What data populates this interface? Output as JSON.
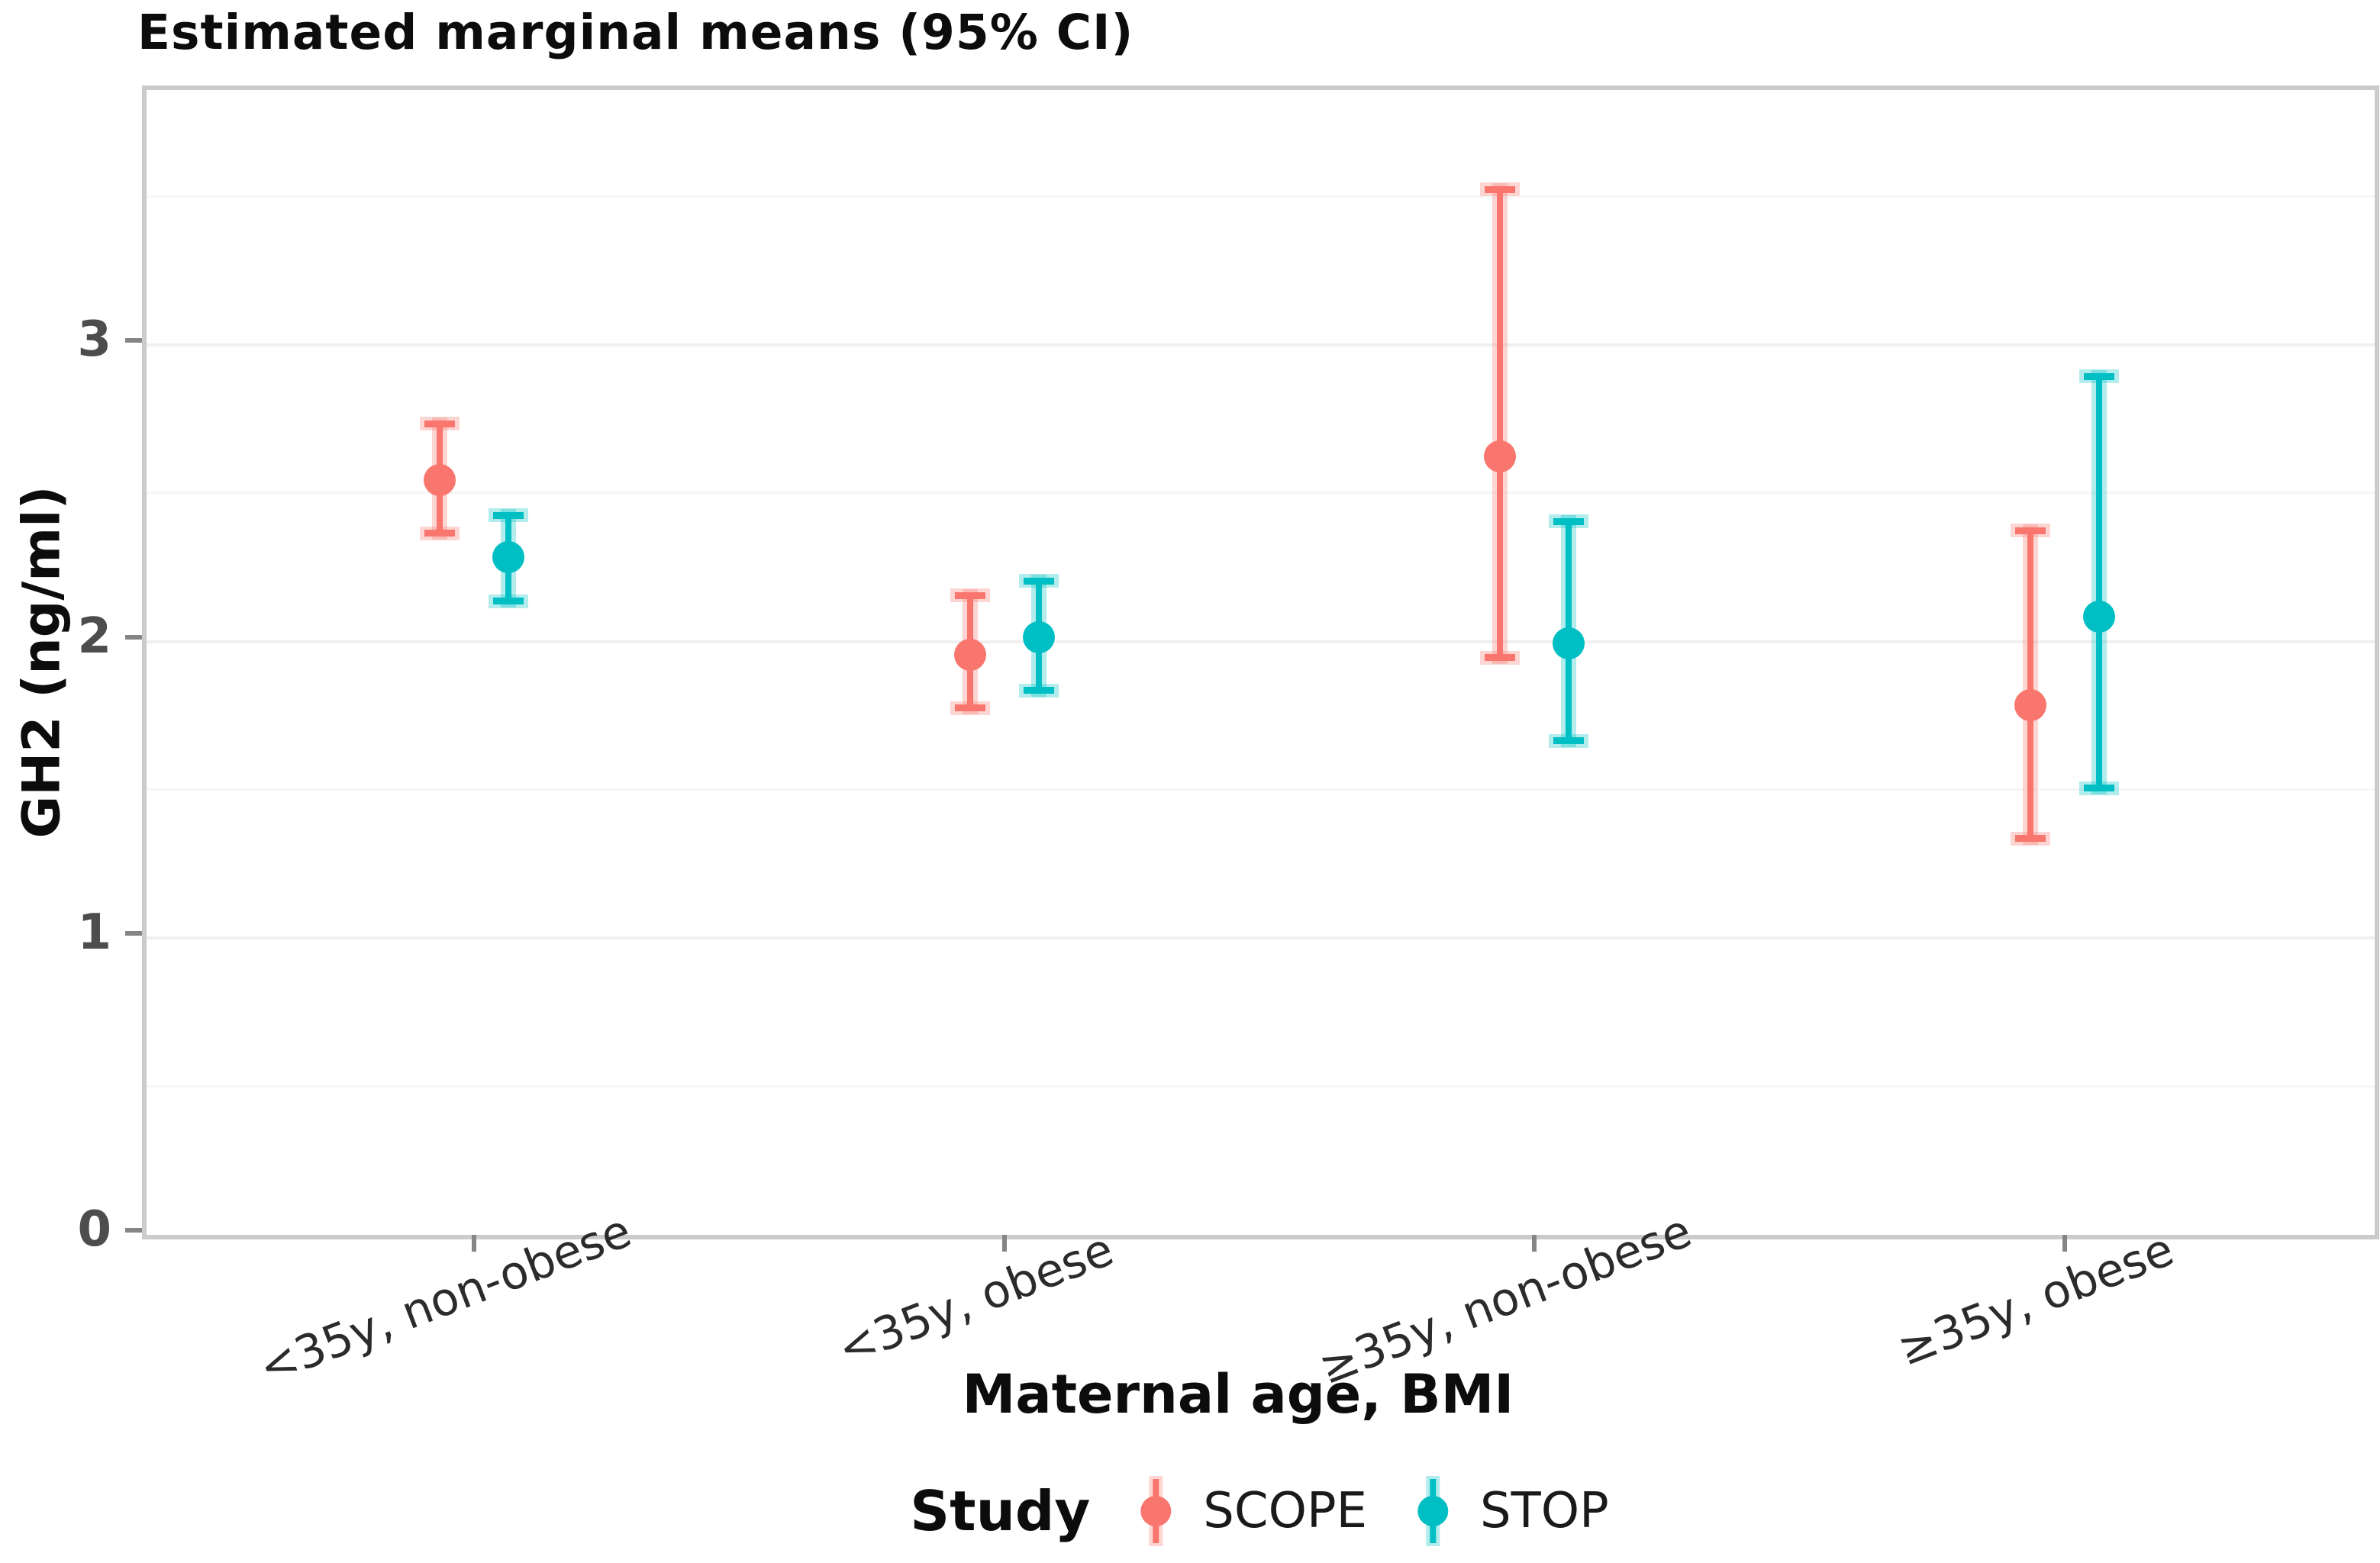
{
  "title": "Estimated marginal means (95% CI)",
  "colors": {
    "scope": "#F8766D",
    "stop": "#00BFC4",
    "grid_major": "#f0f0f0",
    "grid_minor": "#f6f6f6",
    "panel_border": "#cbcbcb",
    "tick_mark": "#858585",
    "ytick_text": "#4d4d4d",
    "xtick_text": "#2b2b2b"
  },
  "axes": {
    "ylabel": "GH2 (ng/ml)",
    "xlabel": "Maternal age, BMI",
    "ytick_labels": [
      "0",
      "1",
      "2",
      "3"
    ],
    "ytick_values": [
      0,
      1,
      2,
      3
    ]
  },
  "legend": {
    "title": "Study",
    "entries": [
      {
        "label": "SCOPE",
        "color": "#F8766D"
      },
      {
        "label": "STOP",
        "color": "#00BFC4"
      }
    ]
  },
  "chart_data": {
    "type": "pointrange",
    "description": "Estimated marginal means with 95% confidence interval error bars, dodged by study",
    "title": "Estimated marginal means (95% CI)",
    "xlabel": "Maternal age, BMI",
    "ylabel": "GH2 (ng/ml)",
    "categories": [
      "<35y, non-obese",
      "<35y, obese",
      "≥35y, non-obese",
      "≥35y, obese"
    ],
    "series": [
      {
        "name": "SCOPE",
        "color": "#F8766D",
        "means": [
          2.53,
          1.94,
          2.61,
          1.77
        ],
        "ci_low": [
          2.35,
          1.76,
          1.93,
          1.32
        ],
        "ci_high": [
          2.72,
          2.14,
          3.51,
          2.36
        ]
      },
      {
        "name": "STOP",
        "color": "#00BFC4",
        "means": [
          2.27,
          2.0,
          1.98,
          2.07
        ],
        "ci_low": [
          2.12,
          1.82,
          1.65,
          1.49
        ],
        "ci_high": [
          2.41,
          2.19,
          2.39,
          2.88
        ]
      }
    ],
    "ylim": [
      0,
      3.86
    ],
    "yticks": [
      0,
      1,
      2,
      3
    ],
    "grid": "horizontal major gridlines at integers and minor at 0.5 steps, very light gray",
    "legend_position": "bottom"
  }
}
